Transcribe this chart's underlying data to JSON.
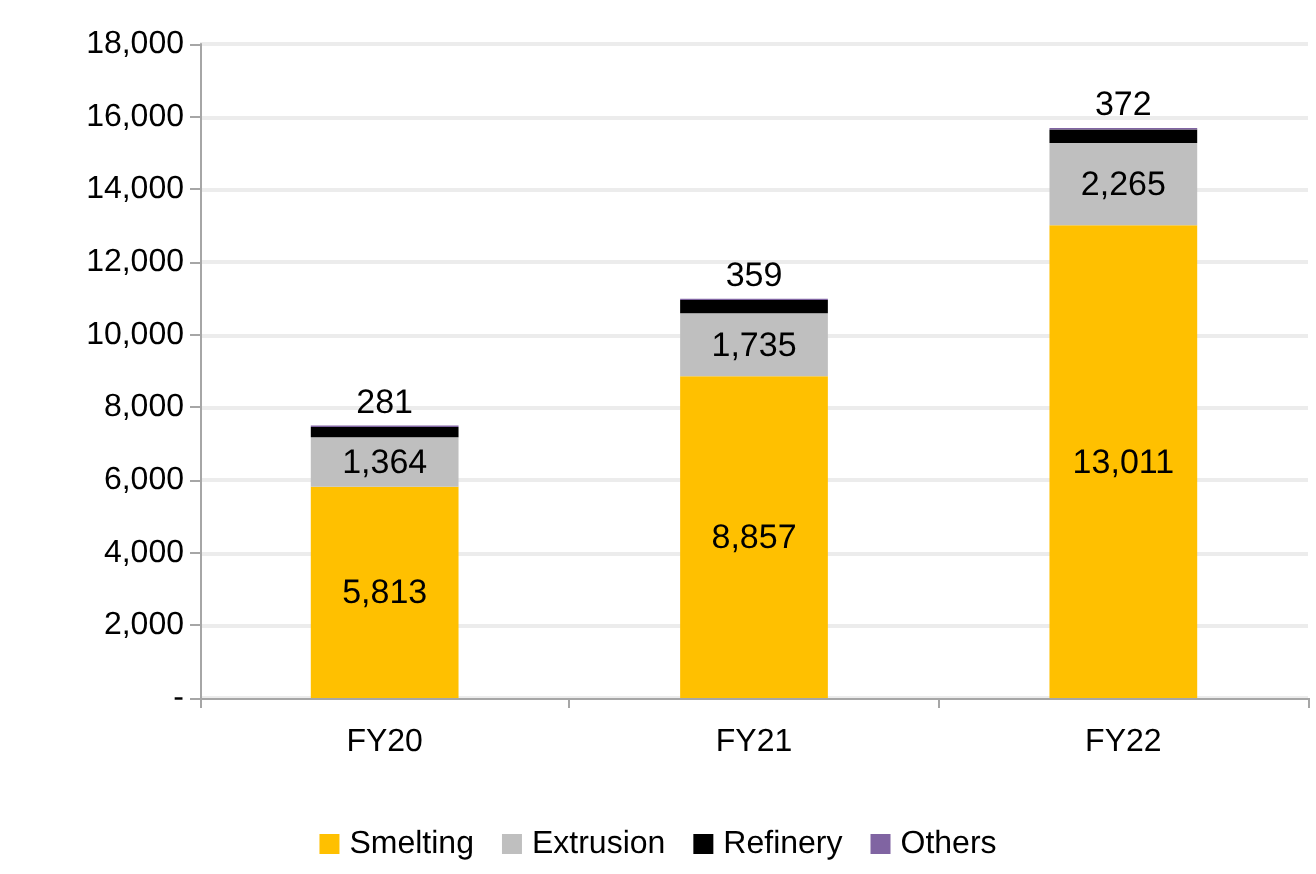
{
  "chart_data": {
    "type": "bar",
    "stacked": true,
    "categories": [
      "FY20",
      "FY21",
      "FY22"
    ],
    "series": [
      {
        "name": "Smelting",
        "color": "#ffc000",
        "values": [
          5813,
          8857,
          13011
        ],
        "value_labels": [
          "5,813",
          "8,857",
          "13,011"
        ]
      },
      {
        "name": "Extrusion",
        "color": "#bfbfbf",
        "values": [
          1364,
          1735,
          2265
        ],
        "value_labels": [
          "1,364",
          "1,735",
          "2,265"
        ]
      },
      {
        "name": "Refinery",
        "color": "#000000",
        "values": [
          281,
          359,
          372
        ],
        "value_labels": [
          "281",
          "359",
          "372"
        ]
      },
      {
        "name": "Others",
        "color": "#8064a2",
        "values": [
          40,
          40,
          40
        ]
      }
    ],
    "ylim": [
      0,
      18000
    ],
    "yticks": [
      {
        "value": 0,
        "label": "-"
      },
      {
        "value": 2000,
        "label": "2,000"
      },
      {
        "value": 4000,
        "label": "4,000"
      },
      {
        "value": 6000,
        "label": "6,000"
      },
      {
        "value": 8000,
        "label": "8,000"
      },
      {
        "value": 10000,
        "label": "10,000"
      },
      {
        "value": 12000,
        "label": "12,000"
      },
      {
        "value": 14000,
        "label": "14,000"
      },
      {
        "value": 16000,
        "label": "16,000"
      },
      {
        "value": 18000,
        "label": "18,000"
      }
    ],
    "grid": "y",
    "legend": "bottom"
  }
}
